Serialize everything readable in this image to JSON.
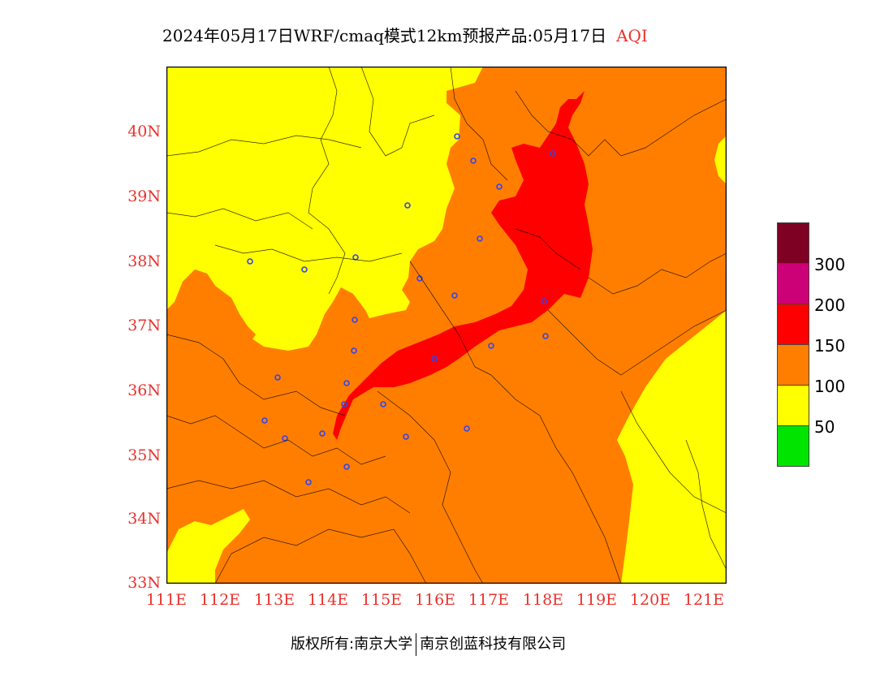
{
  "title": {
    "text": "2024年05月17日WRF/cmaq模式12km预报产品:05月17日",
    "aqi": "AQI"
  },
  "map": {
    "lat_labels": [
      "40N",
      "39N",
      "38N",
      "37N",
      "36N",
      "35N",
      "34N",
      "33N"
    ],
    "lon_labels": [
      "111E",
      "112E",
      "113E",
      "114E",
      "115E",
      "116E",
      "117E",
      "118E",
      "119E",
      "120E",
      "121E"
    ],
    "lat_range": [
      33,
      41
    ],
    "lon_range": [
      111,
      121.4
    ],
    "colors": {
      "good": "#00e400",
      "moderate": "#ffff00",
      "usg": "#ff7e00",
      "unhealthy": "#ff0000",
      "very_unhealthy": "#cc0077",
      "hazardous": "#7e0023"
    }
  },
  "legend": {
    "labels": [
      "300",
      "200",
      "150",
      "100",
      "50"
    ]
  },
  "footer": {
    "left": "版权所有:南京大学",
    "right": "南京创蓝科技有限公司"
  }
}
